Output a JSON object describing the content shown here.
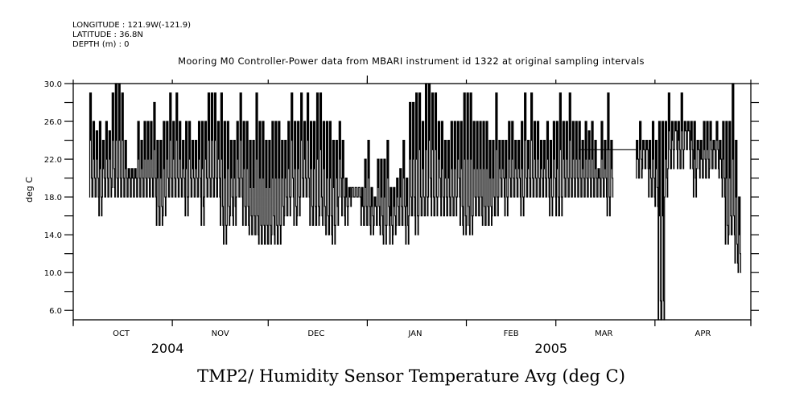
{
  "header": {
    "longitude": "LONGITUDE : 121.9W(-121.9)",
    "latitude": "LATITUDE : 36.8N",
    "depth": "DEPTH (m) : 0"
  },
  "chart_data": {
    "type": "line",
    "title": "Mooring M0 Controller-Power data from MBARI instrument id 1322 at original sampling intervals",
    "xlabel": "TMP2/ Humidity Sensor Temperature Avg (deg C)",
    "ylabel": "deg C",
    "xlim": [
      "2004-10-01",
      "2005-05-01"
    ],
    "ylim": [
      5.0,
      30.0
    ],
    "y_ticks": [
      6.0,
      8.0,
      10.0,
      12.0,
      14.0,
      16.0,
      18.0,
      20.0,
      22.0,
      24.0,
      26.0,
      28.0,
      30.0
    ],
    "y_tick_labels": [
      "6.0",
      "10.0",
      "14.0",
      "18.0",
      "22.0",
      "26.0",
      "30.0"
    ],
    "y_labeled_values": [
      6.0,
      10.0,
      14.0,
      18.0,
      22.0,
      26.0,
      30.0
    ],
    "x_month_ticks": [
      "2004-10-01",
      "2004-11-01",
      "2004-12-01",
      "2005-01-01",
      "2005-02-01",
      "2005-03-01",
      "2005-04-01",
      "2005-05-01"
    ],
    "x_month_labels": [
      {
        "label": "OCT",
        "date": "2004-10-16"
      },
      {
        "label": "NOV",
        "date": "2004-11-16"
      },
      {
        "label": "DEC",
        "date": "2004-12-16"
      },
      {
        "label": "JAN",
        "date": "2005-01-16"
      },
      {
        "label": "FEB",
        "date": "2005-02-15"
      },
      {
        "label": "MAR",
        "date": "2005-03-16"
      },
      {
        "label": "APR",
        "date": "2005-04-16"
      }
    ],
    "x_year_labels": [
      {
        "label": "2004",
        "date": "2004-11-01"
      },
      {
        "label": "2005",
        "date": "2005-03-01"
      }
    ],
    "grid": false,
    "legend": "none",
    "series": [
      {
        "name": "TMP2 Humidity Sensor Temperature Avg",
        "units": "deg C",
        "segments": [
          {
            "start": "2004-10-06",
            "step_days": 1,
            "daily_min_max": [
              [
                18,
                29
              ],
              [
                18,
                26
              ],
              [
                18,
                25
              ],
              [
                16,
                26
              ],
              [
                18,
                24
              ],
              [
                18,
                26
              ],
              [
                18,
                25
              ],
              [
                19,
                29
              ],
              [
                18,
                30
              ],
              [
                18,
                30
              ],
              [
                18,
                29
              ],
              [
                18,
                24
              ],
              [
                18,
                21
              ],
              [
                18,
                21
              ],
              [
                18,
                21
              ],
              [
                18,
                26
              ],
              [
                18,
                24
              ],
              [
                18,
                26
              ],
              [
                18,
                26
              ],
              [
                18,
                26
              ],
              [
                18,
                28
              ],
              [
                15,
                24
              ],
              [
                15,
                24
              ],
              [
                16,
                26
              ],
              [
                18,
                26
              ],
              [
                18,
                29
              ],
              [
                18,
                26
              ],
              [
                18,
                29
              ],
              [
                18,
                26
              ],
              [
                18,
                24
              ],
              [
                16,
                26
              ],
              [
                18,
                26
              ],
              [
                18,
                24
              ],
              [
                18,
                24
              ],
              [
                18,
                26
              ],
              [
                15,
                26
              ],
              [
                18,
                26
              ],
              [
                18,
                29
              ],
              [
                18,
                29
              ],
              [
                18,
                29
              ],
              [
                18,
                26
              ],
              [
                15,
                29
              ],
              [
                13,
                26
              ],
              [
                15,
                26
              ],
              [
                16,
                24
              ],
              [
                15,
                24
              ],
              [
                18,
                26
              ],
              [
                18,
                29
              ],
              [
                15,
                26
              ],
              [
                15,
                26
              ],
              [
                14,
                24
              ],
              [
                14,
                24
              ],
              [
                14,
                29
              ],
              [
                13,
                26
              ],
              [
                13,
                26
              ],
              [
                13,
                24
              ],
              [
                13,
                24
              ],
              [
                14,
                26
              ],
              [
                13,
                26
              ],
              [
                13,
                26
              ],
              [
                15,
                24
              ],
              [
                16,
                24
              ],
              [
                16,
                26
              ],
              [
                18,
                29
              ],
              [
                15,
                26
              ],
              [
                16,
                26
              ],
              [
                18,
                29
              ],
              [
                18,
                26
              ],
              [
                18,
                29
              ],
              [
                15,
                26
              ],
              [
                15,
                26
              ],
              [
                15,
                29
              ],
              [
                16,
                29
              ],
              [
                15,
                26
              ],
              [
                14,
                26
              ],
              [
                14,
                26
              ],
              [
                13,
                24
              ],
              [
                15,
                24
              ],
              [
                18,
                26
              ],
              [
                16,
                24
              ],
              [
                15,
                20
              ],
              [
                17,
                19
              ],
              [
                18,
                19
              ],
              [
                18,
                19
              ],
              [
                18,
                19
              ],
              [
                15,
                19
              ],
              [
                15,
                22
              ],
              [
                15,
                24
              ],
              [
                14,
                19
              ],
              [
                15,
                18
              ],
              [
                15,
                22
              ],
              [
                14,
                22
              ],
              [
                13,
                22
              ],
              [
                15,
                24
              ],
              [
                13,
                19
              ],
              [
                14,
                19
              ],
              [
                15,
                20
              ],
              [
                15,
                21
              ],
              [
                15,
                24
              ],
              [
                13,
                20
              ],
              [
                16,
                28
              ],
              [
                16,
                28
              ],
              [
                14,
                29
              ],
              [
                16,
                29
              ],
              [
                16,
                26
              ],
              [
                16,
                30
              ],
              [
                18,
                30
              ],
              [
                16,
                29
              ],
              [
                16,
                29
              ],
              [
                18,
                26
              ],
              [
                16,
                26
              ],
              [
                16,
                24
              ],
              [
                16,
                24
              ],
              [
                16,
                26
              ],
              [
                16,
                26
              ],
              [
                18,
                26
              ],
              [
                15,
                26
              ],
              [
                14,
                29
              ],
              [
                15,
                29
              ],
              [
                14,
                29
              ],
              [
                16,
                26
              ],
              [
                16,
                26
              ],
              [
                16,
                26
              ],
              [
                15,
                26
              ],
              [
                15,
                26
              ],
              [
                15,
                24
              ],
              [
                16,
                24
              ],
              [
                16,
                29
              ],
              [
                18,
                24
              ],
              [
                18,
                24
              ],
              [
                16,
                24
              ],
              [
                18,
                26
              ],
              [
                18,
                26
              ],
              [
                18,
                24
              ],
              [
                18,
                24
              ],
              [
                16,
                26
              ],
              [
                18,
                29
              ],
              [
                18,
                24
              ],
              [
                18,
                29
              ],
              [
                18,
                26
              ],
              [
                18,
                26
              ],
              [
                18,
                24
              ],
              [
                18,
                24
              ],
              [
                18,
                26
              ],
              [
                16,
                24
              ],
              [
                18,
                26
              ],
              [
                16,
                26
              ],
              [
                16,
                29
              ],
              [
                18,
                26
              ],
              [
                18,
                26
              ],
              [
                18,
                29
              ],
              [
                18,
                26
              ],
              [
                18,
                26
              ],
              [
                18,
                26
              ],
              [
                18,
                24
              ],
              [
                18,
                26
              ],
              [
                18,
                25
              ],
              [
                18,
                26
              ],
              [
                18,
                24
              ],
              [
                18,
                21
              ],
              [
                18,
                26
              ],
              [
                18,
                24
              ],
              [
                16,
                29
              ],
              [
                18,
                24
              ]
            ]
          },
          {
            "start": "2005-03-08",
            "step_days": 1,
            "note": "interpolated gap",
            "daily_min_max": [
              [
                23,
                23
              ],
              [
                23,
                23
              ],
              [
                23,
                23
              ],
              [
                23,
                23
              ],
              [
                23,
                23
              ],
              [
                23,
                23
              ],
              [
                23,
                23
              ],
              [
                23,
                23
              ],
              [
                23,
                23
              ],
              [
                23,
                23
              ],
              [
                23,
                23
              ],
              [
                23,
                23
              ],
              [
                23,
                23
              ],
              [
                23,
                23
              ],
              [
                23,
                23
              ],
              [
                23,
                23
              ],
              [
                23,
                23
              ],
              [
                23,
                23
              ]
            ]
          },
          {
            "start": "2005-03-26",
            "step_days": 1,
            "daily_min_max": [
              [
                20,
                24
              ],
              [
                20,
                26
              ],
              [
                21,
                24
              ],
              [
                21,
                24
              ],
              [
                18,
                24
              ],
              [
                18,
                26
              ],
              [
                17,
                24
              ],
              [
                5,
                26
              ],
              [
                5,
                26
              ],
              [
                18,
                26
              ],
              [
                21,
                29
              ],
              [
                21,
                26
              ],
              [
                23,
                26
              ],
              [
                21,
                26
              ],
              [
                21,
                29
              ],
              [
                23,
                26
              ],
              [
                23,
                26
              ],
              [
                21,
                26
              ],
              [
                18,
                26
              ],
              [
                21,
                24
              ],
              [
                20,
                24
              ],
              [
                20,
                26
              ],
              [
                20,
                26
              ],
              [
                21,
                26
              ],
              [
                21,
                24
              ],
              [
                21,
                26
              ],
              [
                20,
                24
              ],
              [
                18,
                26
              ],
              [
                13,
                26
              ],
              [
                14,
                26
              ],
              [
                14,
                30
              ],
              [
                11,
                24
              ],
              [
                10,
                18
              ]
            ]
          }
        ]
      }
    ]
  }
}
